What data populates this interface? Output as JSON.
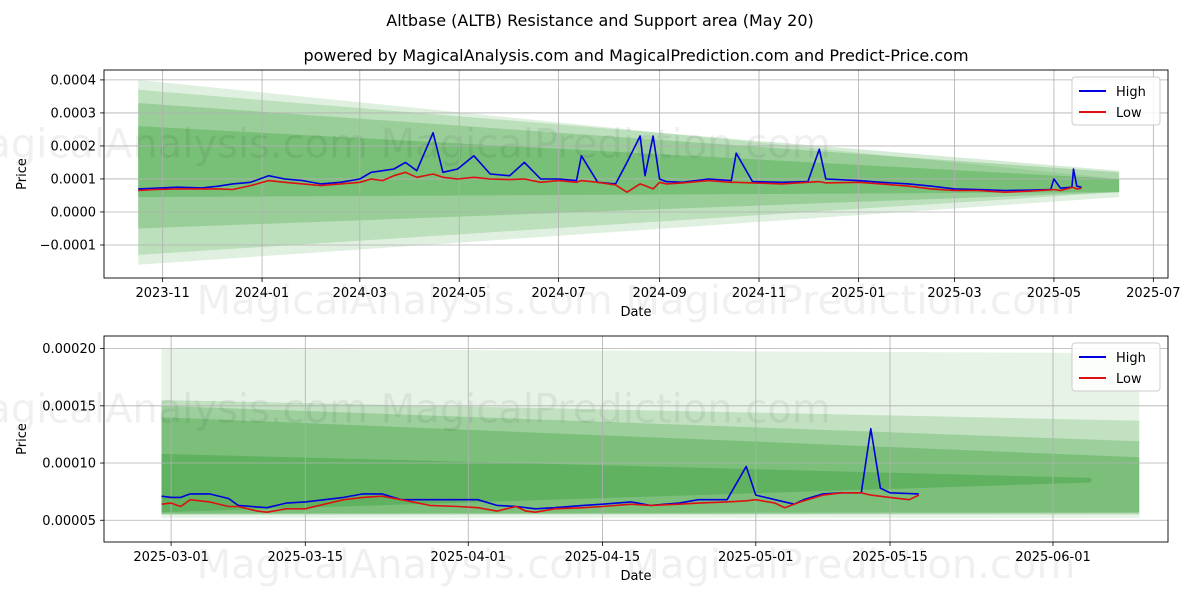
{
  "figure_title": "Altbase (ALTB) Resistance and Support area (May 20)",
  "watermark": "MagicalAnalysis.com   MagicalPrediction.com",
  "colors": {
    "high": "#0000dd",
    "low": "#dd1111",
    "band_fill": "#2e9b2e",
    "band_light": "#c8e6c8",
    "grid": "#b0b0b0"
  },
  "chart_data": [
    {
      "type": "line",
      "title": "powered by MagicalAnalysis.com and MagicalPrediction.com and Predict-Price.com",
      "xlabel": "Date",
      "ylabel": "Price",
      "xlim": [
        "2023-09-26",
        "2025-07-10"
      ],
      "ylim": [
        -0.0002,
        0.00043
      ],
      "grid": true,
      "legend_placement": "top-right",
      "x_ticks": [
        "2023-11",
        "2024-01",
        "2024-03",
        "2024-05",
        "2024-07",
        "2024-09",
        "2024-11",
        "2025-01",
        "2025-03",
        "2025-05",
        "2025-07"
      ],
      "y_ticks": [
        -0.0001,
        0.0,
        0.0001,
        0.0002,
        0.0003,
        0.0004
      ],
      "y_tick_labels": [
        "−0.0001",
        "0.0000",
        "0.0001",
        "0.0002",
        "0.0003",
        "0.0004"
      ],
      "bands": [
        {
          "start": "2023-10-17",
          "end": "2025-06-10",
          "upper": [
            0.0004,
            0.0001
          ],
          "lower": [
            -0.00016,
            4.5e-05
          ],
          "opacity": 0.15
        },
        {
          "start": "2023-10-17",
          "end": "2025-06-10",
          "upper": [
            0.00037,
            0.000125
          ],
          "lower": [
            -0.00013,
            6e-05
          ],
          "opacity": 0.2
        },
        {
          "start": "2023-10-17",
          "end": "2025-06-10",
          "upper": [
            0.00033,
            0.00012
          ],
          "lower": [
            -5e-05,
            6e-05
          ],
          "opacity": 0.25
        },
        {
          "start": "2023-10-17",
          "end": "2025-06-10",
          "upper": [
            0.00026,
            0.0001
          ],
          "lower": [
            4.5e-05,
            6e-05
          ],
          "opacity": 0.3
        }
      ],
      "series": [
        {
          "name": "High",
          "x": [
            "2023-10-17",
            "2023-10-28",
            "2023-11-10",
            "2023-11-25",
            "2023-12-05",
            "2023-12-14",
            "2023-12-25",
            "2024-01-05",
            "2024-01-15",
            "2024-01-26",
            "2024-02-06",
            "2024-02-18",
            "2024-03-01",
            "2024-03-08",
            "2024-03-15",
            "2024-03-22",
            "2024-03-29",
            "2024-04-05",
            "2024-04-15",
            "2024-04-21",
            "2024-04-30",
            "2024-05-10",
            "2024-05-20",
            "2024-06-01",
            "2024-06-10",
            "2024-06-20",
            "2024-07-01",
            "2024-07-12",
            "2024-07-15",
            "2024-07-25",
            "2024-08-05",
            "2024-08-12",
            "2024-08-20",
            "2024-08-23",
            "2024-08-28",
            "2024-09-01",
            "2024-09-05",
            "2024-09-15",
            "2024-10-01",
            "2024-10-15",
            "2024-10-18",
            "2024-10-28",
            "2024-11-15",
            "2024-12-01",
            "2024-12-08",
            "2024-12-12",
            "2025-01-01",
            "2025-01-15",
            "2025-02-01",
            "2025-02-15",
            "2025-03-01",
            "2025-03-15",
            "2025-04-01",
            "2025-04-15",
            "2025-04-29",
            "2025-05-01",
            "2025-05-05",
            "2025-05-12",
            "2025-05-13",
            "2025-05-15",
            "2025-05-18"
          ],
          "values": [
            7e-05,
            7.2e-05,
            7.5e-05,
            7.3e-05,
            7.8e-05,
            8.5e-05,
            9e-05,
            0.00011,
            0.0001,
            9.5e-05,
            8.5e-05,
            9e-05,
            0.0001,
            0.00012,
            0.000125,
            0.00013,
            0.00015,
            0.000125,
            0.00024,
            0.00012,
            0.00013,
            0.00017,
            0.000115,
            0.00011,
            0.00015,
            0.0001,
            0.0001,
            9.5e-05,
            0.00017,
            9e-05,
            8.5e-05,
            0.00015,
            0.00023,
            0.00011,
            0.00023,
            0.0001,
            9.2e-05,
            9e-05,
            0.0001,
            9.5e-05,
            0.000178,
            9.2e-05,
            9e-05,
            9.2e-05,
            0.00019,
            0.0001,
            9.5e-05,
            9e-05,
            8.5e-05,
            7.8e-05,
            7e-05,
            6.8e-05,
            6.5e-05,
            6.6e-05,
            6.8e-05,
            0.0001,
            7.2e-05,
            7.5e-05,
            0.00013,
            7.8e-05,
            7.5e-05
          ]
        },
        {
          "name": "Low",
          "x": [
            "2023-10-17",
            "2023-10-28",
            "2023-11-10",
            "2023-11-25",
            "2023-12-05",
            "2023-12-14",
            "2023-12-25",
            "2024-01-05",
            "2024-01-15",
            "2024-01-26",
            "2024-02-06",
            "2024-02-18",
            "2024-03-01",
            "2024-03-08",
            "2024-03-15",
            "2024-03-22",
            "2024-03-29",
            "2024-04-05",
            "2024-04-15",
            "2024-04-21",
            "2024-04-30",
            "2024-05-10",
            "2024-05-20",
            "2024-06-01",
            "2024-06-10",
            "2024-06-20",
            "2024-07-01",
            "2024-07-12",
            "2024-07-15",
            "2024-07-25",
            "2024-08-05",
            "2024-08-12",
            "2024-08-20",
            "2024-08-23",
            "2024-08-28",
            "2024-09-01",
            "2024-09-05",
            "2024-09-15",
            "2024-10-01",
            "2024-10-15",
            "2024-10-18",
            "2024-10-28",
            "2024-11-15",
            "2024-12-01",
            "2024-12-08",
            "2024-12-12",
            "2025-01-01",
            "2025-01-15",
            "2025-02-01",
            "2025-02-15",
            "2025-03-01",
            "2025-03-15",
            "2025-04-01",
            "2025-04-15",
            "2025-04-29",
            "2025-05-01",
            "2025-05-05",
            "2025-05-12",
            "2025-05-13",
            "2025-05-15",
            "2025-05-18"
          ],
          "values": [
            6.5e-05,
            6.8e-05,
            7e-05,
            7e-05,
            7e-05,
            6.8e-05,
            8e-05,
            9.5e-05,
            9e-05,
            8.5e-05,
            8e-05,
            8.5e-05,
            9e-05,
            0.0001,
            9.5e-05,
            0.00011,
            0.00012,
            0.000105,
            0.000115,
            0.000105,
            0.0001,
            0.000105,
            0.0001,
            9.8e-05,
            0.0001,
            9e-05,
            9.5e-05,
            9e-05,
            9.5e-05,
            9e-05,
            8.2e-05,
            6e-05,
            8.5e-05,
            8e-05,
            7e-05,
            9e-05,
            8.5e-05,
            8.8e-05,
            9.5e-05,
            9e-05,
            9e-05,
            8.8e-05,
            8.5e-05,
            9e-05,
            9.2e-05,
            8.8e-05,
            9e-05,
            8.5e-05,
            7.8e-05,
            7e-05,
            6.5e-05,
            6.5e-05,
            6e-05,
            6.3e-05,
            6.7e-05,
            6.8e-05,
            6.5e-05,
            7.4e-05,
            7.4e-05,
            7e-05,
            7.2e-05
          ]
        }
      ]
    },
    {
      "type": "line",
      "title": "",
      "xlabel": "Date",
      "ylabel": "Price",
      "xlim": [
        "2025-02-22",
        "2025-06-13"
      ],
      "ylim": [
        3.1e-05,
        0.000211
      ],
      "grid": true,
      "legend_placement": "top-right",
      "x_ticks": [
        "2025-03-01",
        "2025-03-15",
        "2025-04-01",
        "2025-04-15",
        "2025-05-01",
        "2025-05-15",
        "2025-06-01"
      ],
      "y_ticks": [
        5e-05,
        0.0001,
        0.00015,
        0.0002
      ],
      "y_tick_labels": [
        "0.00005",
        "0.00010",
        "0.00015",
        "0.00020"
      ],
      "bands": [
        {
          "start": "2025-02-28",
          "end": "2025-06-10",
          "upper": [
            0.0002,
            0.000196
          ],
          "lower": [
            5.2e-05,
            5.2e-05
          ],
          "opacity": 0.12
        },
        {
          "start": "2025-02-28",
          "end": "2025-06-10",
          "upper": [
            0.000155,
            0.000137
          ],
          "lower": [
            5.5e-05,
            5.5e-05
          ],
          "opacity": 0.2
        },
        {
          "start": "2025-02-28",
          "end": "2025-06-10",
          "upper": [
            0.00015,
            0.000119
          ],
          "lower": [
            5.5e-05,
            5.6e-05
          ],
          "opacity": 0.25
        },
        {
          "start": "2025-02-28",
          "end": "2025-06-10",
          "upper": [
            0.00014,
            0.000105
          ],
          "lower": [
            5.6e-05,
            5.7e-05
          ],
          "opacity": 0.3
        },
        {
          "start": "2025-02-28",
          "end": "2025-06-05",
          "upper": [
            0.000108,
            8.7e-05
          ],
          "lower": [
            5.7e-05,
            8.3e-05
          ],
          "opacity": 0.35
        }
      ],
      "series": [
        {
          "name": "High",
          "x": [
            "2025-02-28",
            "2025-03-01",
            "2025-03-02",
            "2025-03-03",
            "2025-03-05",
            "2025-03-07",
            "2025-03-08",
            "2025-03-11",
            "2025-03-13",
            "2025-03-15",
            "2025-03-17",
            "2025-03-19",
            "2025-03-21",
            "2025-03-23",
            "2025-03-25",
            "2025-03-28",
            "2025-03-31",
            "2025-04-02",
            "2025-04-04",
            "2025-04-06",
            "2025-04-08",
            "2025-04-10",
            "2025-04-13",
            "2025-04-15",
            "2025-04-18",
            "2025-04-20",
            "2025-04-23",
            "2025-04-25",
            "2025-04-28",
            "2025-04-30",
            "2025-05-01",
            "2025-05-03",
            "2025-05-05",
            "2025-05-06",
            "2025-05-08",
            "2025-05-10",
            "2025-05-12",
            "2025-05-13",
            "2025-05-14",
            "2025-05-15",
            "2025-05-18"
          ],
          "values": [
            7.1e-05,
            7e-05,
            7e-05,
            7.3e-05,
            7.3e-05,
            6.9e-05,
            6.3e-05,
            6.1e-05,
            6.5e-05,
            6.6e-05,
            6.8e-05,
            7e-05,
            7.3e-05,
            7.3e-05,
            6.8e-05,
            6.8e-05,
            6.8e-05,
            6.8e-05,
            6.3e-05,
            6.2e-05,
            6e-05,
            6.1e-05,
            6.3e-05,
            6.4e-05,
            6.6e-05,
            6.3e-05,
            6.5e-05,
            6.8e-05,
            6.8e-05,
            9.7e-05,
            7.2e-05,
            6.8e-05,
            6.4e-05,
            6.8e-05,
            7.3e-05,
            7.4e-05,
            7.4e-05,
            0.00013,
            7.8e-05,
            7.4e-05,
            7.3e-05
          ]
        },
        {
          "name": "Low",
          "x": [
            "2025-02-28",
            "2025-03-01",
            "2025-03-02",
            "2025-03-03",
            "2025-03-05",
            "2025-03-07",
            "2025-03-08",
            "2025-03-10",
            "2025-03-11",
            "2025-03-13",
            "2025-03-15",
            "2025-03-17",
            "2025-03-19",
            "2025-03-21",
            "2025-03-23",
            "2025-03-25",
            "2025-03-28",
            "2025-03-31",
            "2025-04-02",
            "2025-04-04",
            "2025-04-06",
            "2025-04-07",
            "2025-04-08",
            "2025-04-10",
            "2025-04-13",
            "2025-04-15",
            "2025-04-18",
            "2025-04-20",
            "2025-04-23",
            "2025-04-25",
            "2025-04-28",
            "2025-04-30",
            "2025-05-01",
            "2025-05-03",
            "2025-05-04",
            "2025-05-06",
            "2025-05-08",
            "2025-05-10",
            "2025-05-12",
            "2025-05-13",
            "2025-05-15",
            "2025-05-17",
            "2025-05-18"
          ],
          "values": [
            6.4e-05,
            6.5e-05,
            6.2e-05,
            6.8e-05,
            6.6e-05,
            6.2e-05,
            6.2e-05,
            5.8e-05,
            5.7e-05,
            6e-05,
            6e-05,
            6.4e-05,
            6.8e-05,
            7e-05,
            7.1e-05,
            6.8e-05,
            6.3e-05,
            6.2e-05,
            6.1e-05,
            5.8e-05,
            6.2e-05,
            5.8e-05,
            5.7e-05,
            6e-05,
            6.1e-05,
            6.2e-05,
            6.4e-05,
            6.3e-05,
            6.4e-05,
            6.5e-05,
            6.6e-05,
            6.7e-05,
            6.8e-05,
            6.5e-05,
            6.1e-05,
            6.7e-05,
            7.2e-05,
            7.4e-05,
            7.4e-05,
            7.2e-05,
            7e-05,
            6.8e-05,
            7.2e-05
          ]
        }
      ]
    }
  ]
}
